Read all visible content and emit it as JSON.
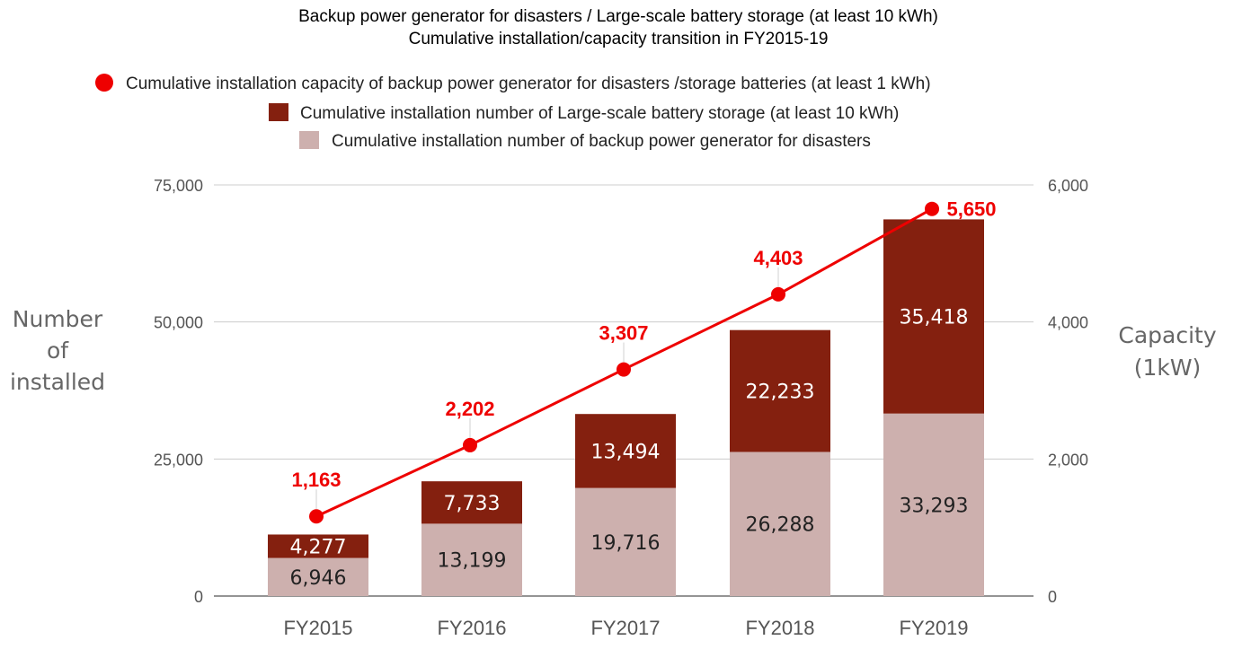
{
  "chart_data": {
    "type": "bar",
    "stacked": true,
    "title_line1": "Backup power generator for disasters / Large-scale battery storage (at least 10 kWh)",
    "title_line2": "Cumulative installation/capacity transition in FY2015-19",
    "categories": [
      "FY2015",
      "FY2016",
      "FY2017",
      "FY2018",
      "FY2019"
    ],
    "series": [
      {
        "name": "Cumulative installation number of  backup power generator for disasters",
        "type": "bar",
        "axis": "left",
        "color": "#cdb0ae",
        "label_color": "#222222",
        "values": [
          6946,
          13199,
          19716,
          26288,
          33293
        ],
        "labels": [
          "6,946",
          "13,199",
          "19,716",
          "26,288",
          "33,293"
        ]
      },
      {
        "name": "Cumulative installation number of Large-scale battery storage (at least 10 kWh)",
        "type": "bar",
        "axis": "left",
        "color": "#84200f",
        "label_color": "#ffffff",
        "values": [
          4277,
          7733,
          13494,
          22233,
          35418
        ],
        "labels": [
          "4,277",
          "7,733",
          "13,494",
          "22,233",
          "35,418"
        ]
      },
      {
        "name": "Cumulative installation capacity of backup power generator for disasters /storage batteries (at least 1 kWh)",
        "type": "line",
        "axis": "right",
        "color": "#ee0000",
        "values": [
          1163,
          2202,
          3307,
          4403,
          5650
        ],
        "labels": [
          "1,163",
          "2,202",
          "3,307",
          "4,403",
          "5,650"
        ]
      }
    ],
    "legend_order": [
      2,
      1,
      0
    ],
    "legend_position": "top",
    "y_left": {
      "label_lines": [
        "Number",
        "of",
        "installed"
      ],
      "ylim": [
        0,
        75000
      ],
      "ticks": [
        0,
        25000,
        50000,
        75000
      ],
      "tick_labels": [
        "0",
        "25,000",
        "50,000",
        "75,000"
      ]
    },
    "y_right": {
      "label_lines": [
        "Capacity",
        "(1kW)"
      ],
      "ylim": [
        0,
        6000
      ],
      "ticks": [
        0,
        2000,
        4000,
        6000
      ],
      "tick_labels": [
        "0",
        "2,000",
        "4,000",
        "6,000"
      ]
    },
    "grid": true
  }
}
